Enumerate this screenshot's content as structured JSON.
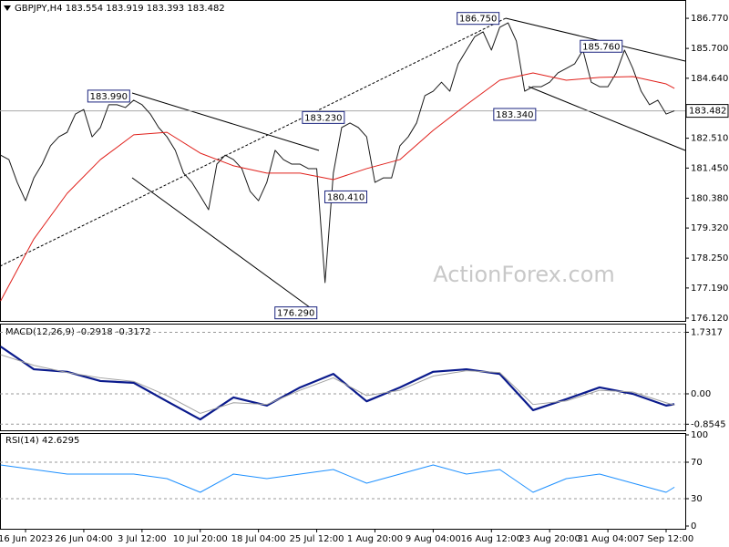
{
  "chart_data": [
    {
      "type": "line",
      "title": "GBPJPY,H4 183.554 183.919 183.393 183.482",
      "watermark": "ActionForex.com",
      "xlim": [
        -0.07,
        82.3
      ],
      "ylim": [
        176.02,
        187.42
      ],
      "yticks": [
        {
          "value": 186.77,
          "label": "186.770"
        },
        {
          "value": 185.7,
          "label": "185.700"
        },
        {
          "value": 184.64,
          "label": "184.640"
        },
        {
          "value": 182.51,
          "label": "182.510"
        },
        {
          "value": 181.45,
          "label": "181.450"
        },
        {
          "value": 180.38,
          "label": "180.380"
        },
        {
          "value": 179.32,
          "label": "179.320"
        },
        {
          "value": 178.25,
          "label": "178.250"
        },
        {
          "value": 177.19,
          "label": "177.190"
        },
        {
          "value": 176.12,
          "label": "176.120"
        }
      ],
      "last_price": 183.482,
      "series": [
        {
          "color": "#1a1a1a",
          "x": [
            0,
            1,
            2,
            3,
            4,
            5,
            6,
            7,
            8,
            9,
            10,
            11,
            12,
            13,
            14,
            15,
            16,
            17,
            18,
            19,
            20,
            21,
            22,
            23,
            24,
            25,
            26,
            27,
            28,
            29,
            30,
            31,
            32,
            33,
            34,
            35,
            36,
            37,
            38,
            39,
            40,
            41,
            42,
            43,
            44,
            45,
            46,
            47,
            48,
            49,
            50,
            51,
            52,
            53,
            54,
            55,
            56,
            57,
            58,
            59,
            60,
            61,
            62,
            63,
            64,
            65,
            66,
            67,
            68,
            69,
            70,
            71,
            72,
            73,
            74,
            75,
            76,
            77,
            78,
            79,
            80,
            81
          ],
          "values": [
            181.91,
            181.75,
            180.94,
            180.29,
            181.1,
            181.59,
            182.24,
            182.56,
            182.72,
            183.37,
            183.53,
            182.56,
            182.89,
            183.7,
            183.7,
            183.6,
            183.86,
            183.7,
            183.37,
            182.89,
            182.56,
            182.08,
            181.27,
            180.94,
            180.46,
            179.97,
            181.59,
            181.91,
            181.75,
            181.43,
            180.62,
            180.29,
            180.94,
            182.08,
            181.75,
            181.59,
            181.59,
            181.43,
            181.43,
            177.38,
            181.27,
            182.89,
            183.05,
            182.89,
            182.56,
            180.94,
            181.1,
            181.1,
            182.24,
            182.56,
            183.05,
            184.02,
            184.18,
            184.5,
            184.18,
            185.15,
            185.64,
            186.12,
            186.29,
            185.64,
            186.45,
            186.61,
            185.96,
            184.18,
            184.34,
            184.34,
            184.5,
            184.83,
            184.99,
            185.15,
            185.64,
            184.5,
            184.34,
            184.34,
            184.83,
            185.64,
            184.99,
            184.18,
            183.7,
            183.86,
            183.37,
            183.482
          ]
        },
        {
          "color": "#e0201b",
          "x": [
            0,
            4,
            8,
            12,
            16,
            20,
            24,
            28,
            32,
            36,
            40,
            44,
            48,
            52,
            56,
            60,
            64,
            68,
            72,
            76,
            80,
            81
          ],
          "values": [
            176.73,
            178.93,
            180.55,
            181.75,
            182.63,
            182.72,
            181.98,
            181.53,
            181.27,
            181.27,
            181.04,
            181.43,
            181.75,
            182.79,
            183.7,
            184.57,
            184.83,
            184.57,
            184.67,
            184.7,
            184.44,
            184.28
          ]
        }
      ],
      "annotations": [
        {
          "x": 13,
          "value": 183.99,
          "label": "183.990"
        },
        {
          "x": 57.4,
          "value": 186.75,
          "label": "186.750"
        },
        {
          "x": 72.2,
          "value": 185.76,
          "label": "185.760"
        },
        {
          "x": 38.8,
          "value": 183.23,
          "label": "183.230"
        },
        {
          "x": 61.8,
          "value": 183.34,
          "label": "183.340"
        },
        {
          "x": 41.5,
          "value": 180.41,
          "label": "180.410"
        },
        {
          "x": 35.5,
          "value": 176.29,
          "label": "176.290"
        }
      ]
    },
    {
      "type": "line",
      "title": "MACD(12,26,9) -0.2918 -0.3172",
      "xlim": [
        -0.07,
        82.3
      ],
      "ylim": [
        -1.026,
        1.974
      ],
      "yticks": [
        1.7317,
        {
          "value": 0,
          "label": "0.00"
        },
        -0.8545
      ],
      "series": [
        {
          "color": "#0a1a8c",
          "x": [
            0,
            4,
            8,
            12,
            16,
            20,
            24,
            28,
            32,
            36,
            40,
            44,
            48,
            52,
            56,
            60,
            64,
            68,
            72,
            76,
            80,
            81
          ],
          "values": [
            1.33,
            0.69,
            0.62,
            0.36,
            0.31,
            -0.21,
            -0.72,
            -0.1,
            -0.33,
            0.18,
            0.56,
            -0.21,
            0.18,
            0.62,
            0.69,
            0.56,
            -0.46,
            -0.15,
            0.18,
            0,
            -0.33,
            -0.2918
          ]
        },
        {
          "color": "#a0a0a0",
          "x": [
            0,
            4,
            8,
            12,
            16,
            20,
            24,
            28,
            32,
            36,
            40,
            44,
            48,
            52,
            56,
            60,
            64,
            68,
            72,
            76,
            80,
            81
          ],
          "values": [
            1.1,
            0.8,
            0.6,
            0.45,
            0.35,
            -0.05,
            -0.55,
            -0.25,
            -0.3,
            0.1,
            0.45,
            -0.05,
            0.1,
            0.5,
            0.65,
            0.6,
            -0.3,
            -0.2,
            0.1,
            0.05,
            -0.25,
            -0.3172
          ]
        }
      ]
    },
    {
      "type": "line",
      "title": "RSI(14) 42.6295",
      "xlim": [
        -0.07,
        82.3
      ],
      "ylim": [
        -3,
        102
      ],
      "yticks": [
        100,
        70,
        30,
        0
      ],
      "xticks": [
        {
          "value": 3,
          "label": "16 Jun 2023"
        },
        {
          "value": 10,
          "label": "26 Jun 04:00"
        },
        {
          "value": 17,
          "label": "3 Jul 12:00"
        },
        {
          "value": 24,
          "label": "10 Jul 20:00"
        },
        {
          "value": 31,
          "label": "18 Jul 04:00"
        },
        {
          "value": 38,
          "label": "25 Jul 12:00"
        },
        {
          "value": 45,
          "label": "1 Aug 20:00"
        },
        {
          "value": 52,
          "label": "9 Aug 04:00"
        },
        {
          "value": 59,
          "label": "16 Aug 12:00"
        },
        {
          "value": 66,
          "label": "23 Aug 20:00"
        },
        {
          "value": 73,
          "label": "31 Aug 04:00"
        },
        {
          "value": 80,
          "label": "7 Sep 12:00"
        }
      ],
      "series": [
        {
          "color": "#1e90ff",
          "x": [
            0,
            4,
            8,
            12,
            16,
            20,
            24,
            28,
            32,
            36,
            40,
            44,
            48,
            52,
            56,
            60,
            64,
            68,
            72,
            76,
            80,
            81
          ],
          "values": [
            67,
            62,
            57,
            57,
            57,
            52,
            37,
            57,
            52,
            57,
            62,
            47,
            57,
            67,
            57,
            62,
            37,
            52,
            57,
            47,
            37,
            42.6295
          ]
        }
      ]
    }
  ]
}
